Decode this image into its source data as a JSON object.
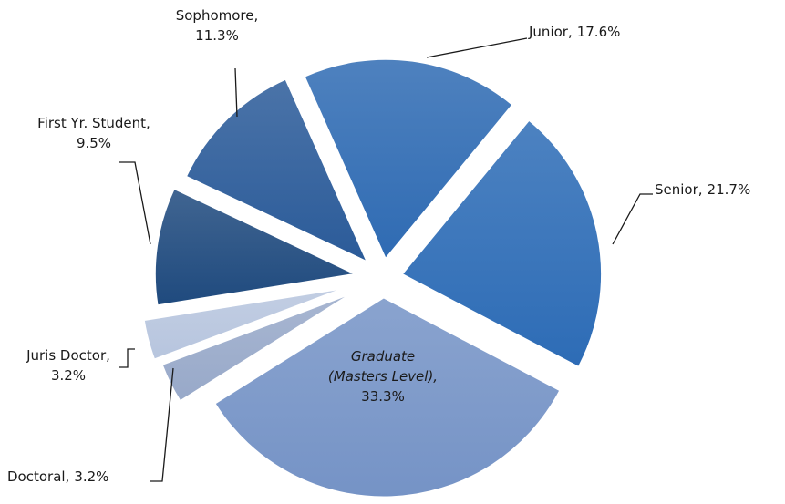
{
  "chart_data": {
    "type": "pie",
    "categories": [
      "Junior,",
      "Senior,",
      "Graduate (Masters Level),",
      "Doctoral,",
      "Juris Doctor,",
      "First Yr. Student,",
      "Sophomore,"
    ],
    "values": [
      17.6,
      21.7,
      33.3,
      3.2,
      3.2,
      9.5,
      11.3
    ],
    "value_labels": [
      "17.6%",
      "21.7%",
      "33.3%",
      "3.2%",
      "3.2%",
      "9.5%",
      "11.3%"
    ],
    "colors": [
      "#2f6bb3",
      "#2d6cb6",
      "#7593c6",
      "#98a9c9",
      "#b7c5de",
      "#1f4a7e",
      "#2b5b99"
    ],
    "start_angle": -24
  }
}
